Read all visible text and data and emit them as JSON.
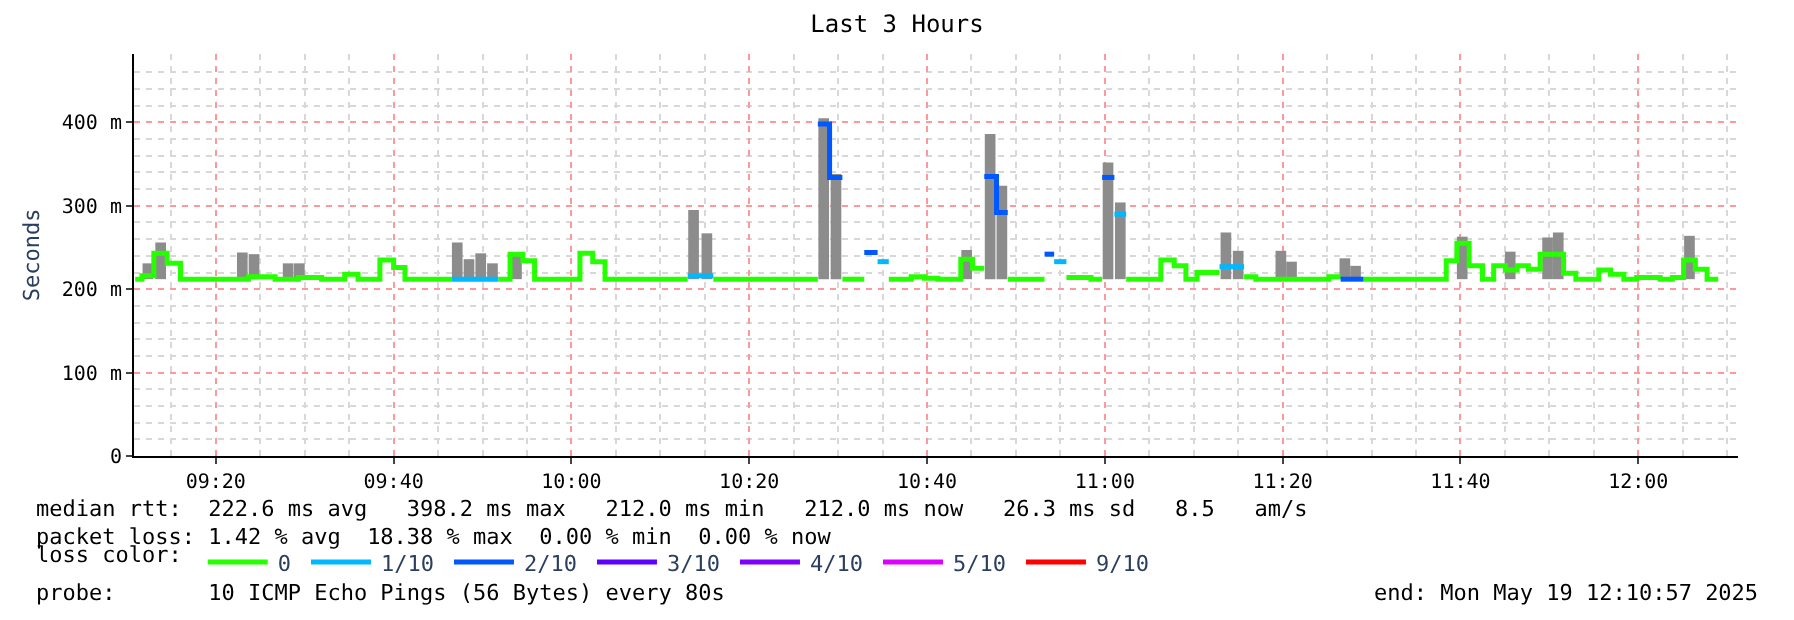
{
  "chart_data": {
    "type": "step",
    "title": "Last 3 Hours",
    "ylabel": "Seconds",
    "legend_title": "loss color:",
    "xlim": [
      9.18,
      12.187
    ],
    "ylim": [
      0,
      482
    ],
    "xticks": [
      {
        "value": 9.3333,
        "label": "09:20"
      },
      {
        "value": 9.6667,
        "label": "09:40"
      },
      {
        "value": 10,
        "label": "10:00"
      },
      {
        "value": 10.3333,
        "label": "10:20"
      },
      {
        "value": 10.6667,
        "label": "10:40"
      },
      {
        "value": 11,
        "label": "11:00"
      },
      {
        "value": 11.3333,
        "label": "11:20"
      },
      {
        "value": 11.6667,
        "label": "11:40"
      },
      {
        "value": 12,
        "label": "12:00"
      }
    ],
    "yticks": [
      0,
      {
        "value": 100,
        "label": "100 m"
      },
      {
        "value": 200,
        "label": "200 m"
      },
      {
        "value": 300,
        "label": "300 m"
      },
      {
        "value": 400,
        "label": "400 m"
      }
    ],
    "grid": true,
    "legend": "bottom",
    "marker": "none",
    "line_style": "solid",
    "series": [
      {
        "type": "bar",
        "color": "#8c8c8c",
        "x": [
          9.206,
          9.23,
          9.383,
          9.405,
          9.469,
          9.49,
          9.786,
          9.808,
          9.83,
          9.852,
          9.897,
          10.229,
          10.254,
          10.473,
          10.496,
          10.741,
          10.785,
          10.807,
          11.006,
          11.029,
          11.227,
          11.25,
          11.33,
          11.35,
          11.45,
          11.47,
          11.67,
          11.76,
          11.83,
          11.85,
          12.096
        ],
        "values": [
          19,
          44,
          32,
          30,
          19,
          19,
          44,
          24,
          31,
          19,
          32,
          83,
          55,
          193,
          126,
          35,
          174,
          112,
          140,
          92,
          56,
          34,
          34,
          21,
          25,
          16,
          51,
          33,
          50,
          56,
          52
        ],
        "base": [
          212,
          212,
          212,
          212,
          212,
          212,
          212,
          212,
          212,
          212,
          212,
          212,
          212,
          212,
          212,
          212,
          212,
          212,
          212,
          212,
          212,
          212,
          212,
          212,
          212,
          212,
          212,
          212,
          212,
          212,
          212
        ]
      },
      {
        "name": "0",
        "color": "#26ff00",
        "x": [
          9.1823,
          9.1949,
          9.2172,
          9.2422,
          9.2672,
          9.3945,
          9.4445,
          9.4882,
          9.5317,
          9.575,
          9.6,
          9.641,
          9.6667,
          9.688,
          9.775,
          null,
          9.863,
          9.885,
          9.909,
          9.931,
          10.016,
          10.04,
          10.063,
          10.218,
          null,
          10.266,
          10.462,
          null,
          10.508,
          10.549,
          null,
          10.595,
          10.637,
          10.662,
          10.687,
          10.73,
          10.752,
          10.774,
          null,
          10.818,
          10.887,
          null,
          10.928,
          10.974,
          10.995,
          null,
          11.04,
          11.105,
          11.13,
          11.152,
          11.173,
          11.215,
          null,
          11.261,
          11.283,
          11.42,
          11.442,
          null,
          11.485,
          11.64,
          11.66,
          11.683,
          11.708,
          11.729,
          11.751,
          11.773,
          11.794,
          11.816,
          11.86,
          11.883,
          11.926,
          11.948,
          11.973,
          11.997,
          12.041,
          12.064,
          12.085,
          12.107,
          12.129,
          12.15
        ],
        "values": [
          212,
          216,
          243,
          231,
          212,
          215,
          212,
          214,
          212,
          218,
          212,
          235,
          226,
          212,
          212,
          null,
          212,
          242,
          234,
          212,
          243,
          233,
          212,
          212,
          null,
          212,
          212,
          null,
          212,
          212,
          null,
          212,
          215,
          213,
          212,
          236,
          225,
          225,
          null,
          212,
          212,
          null,
          214,
          212,
          212,
          null,
          212,
          235,
          228,
          212,
          220,
          220,
          null,
          215,
          212,
          215,
          215,
          null,
          212,
          234,
          255,
          228,
          212,
          228,
          223,
          228,
          224,
          242,
          219,
          212,
          223,
          218,
          212,
          214,
          212,
          214,
          235,
          224,
          212,
          212
        ]
      },
      {
        "name": "1/10",
        "color": "#00b8ff",
        "x": [
          9.775,
          9.863,
          null,
          10.218,
          10.266,
          null,
          10.574,
          10.595,
          null,
          10.905,
          10.928,
          null,
          11.018,
          11.04,
          null,
          11.215,
          11.261
        ],
        "values": [
          212,
          212,
          null,
          216,
          216,
          null,
          233,
          233,
          null,
          233,
          233,
          null,
          290,
          290,
          null,
          227,
          227
        ]
      },
      {
        "name": "2/10",
        "color": "#0059ff",
        "x": [
          10.462,
          10.484,
          10.508,
          null,
          10.549,
          10.574,
          null,
          10.774,
          10.797,
          10.818,
          null,
          10.887,
          10.905,
          null,
          10.995,
          11.018,
          null,
          11.442,
          11.485
        ],
        "values": [
          398,
          334,
          334,
          null,
          244,
          244,
          null,
          335,
          292,
          292,
          null,
          242,
          242,
          null,
          334,
          334,
          null,
          212,
          212
        ]
      },
      {
        "name": "3/10",
        "color": "#5e00ff"
      },
      {
        "name": "4/10",
        "color": "#7e00ff"
      },
      {
        "name": "5/10",
        "color": "#dd00ff"
      },
      {
        "name": "9/10",
        "color": "#ff0000"
      }
    ],
    "annotations": [
      "median rtt:  222.6 ms avg   398.2 ms max   212.0 ms min   212.0 ms now   26.3 ms sd   8.5   am/s",
      "packet loss: 1.42 % avg  18.38 % max  0.00 % min  0.00 % now",
      "probe:       10 ICMP Echo Pings (56 Bytes) every 80s",
      "end: Mon May 19 12:10:57 2025"
    ]
  }
}
